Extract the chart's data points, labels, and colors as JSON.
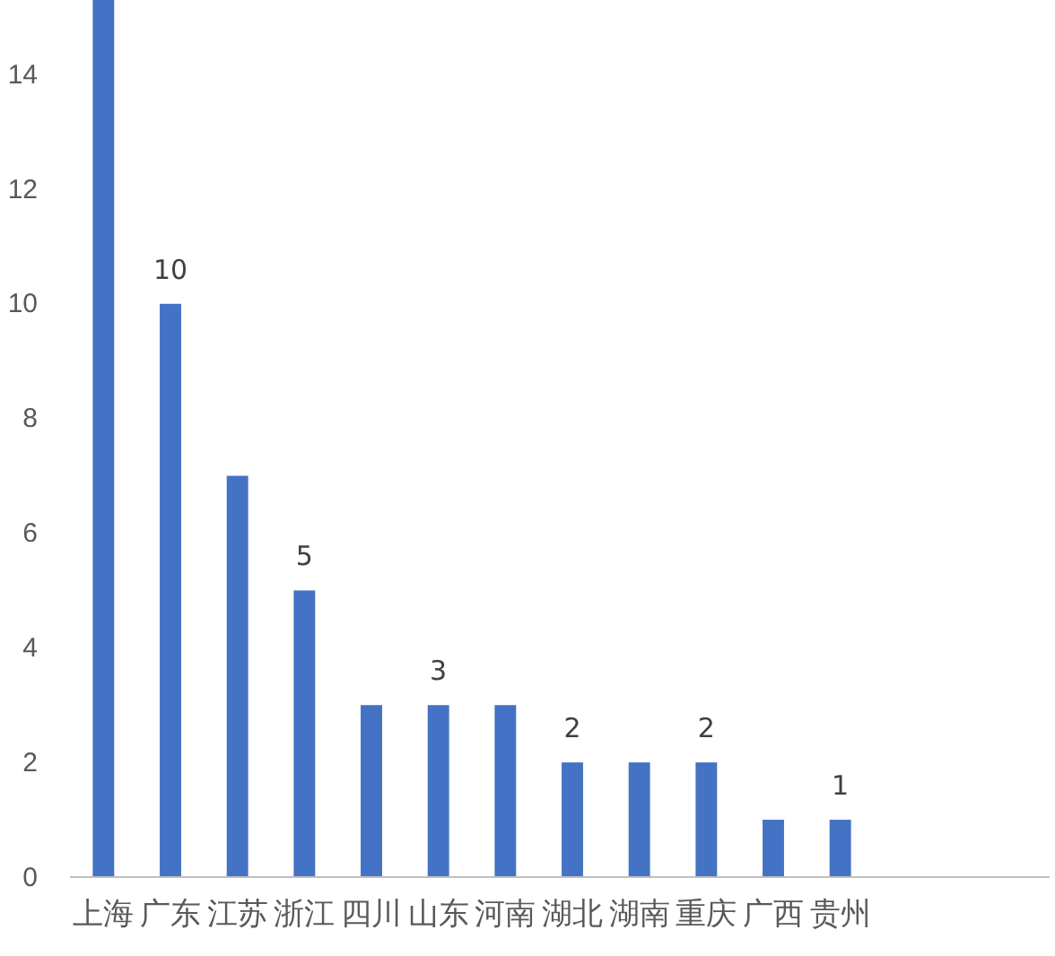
{
  "chart_data": {
    "type": "bar",
    "categories": [
      "上海",
      "广东",
      "江苏",
      "浙江",
      "四川",
      "山东",
      "河南",
      "湖北",
      "湖南",
      "重庆",
      "广西",
      "贵州"
    ],
    "values": [
      15.3,
      10,
      7,
      5,
      3,
      3,
      3,
      2,
      2,
      2,
      1,
      1
    ],
    "value_labels": [
      null,
      "10",
      null,
      "5",
      null,
      "3",
      null,
      "2",
      null,
      "2",
      null,
      "1"
    ],
    "color": "#4472c4",
    "ylim": [
      0,
      15.3
    ],
    "yticks": [
      0,
      2,
      4,
      6,
      8,
      10,
      12,
      14
    ],
    "grid": false
  }
}
